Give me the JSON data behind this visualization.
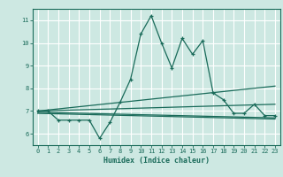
{
  "xlabel": "Humidex (Indice chaleur)",
  "xlim": [
    -0.5,
    23.5
  ],
  "ylim": [
    5.5,
    11.5
  ],
  "yticks": [
    6,
    7,
    8,
    9,
    10,
    11
  ],
  "xticks": [
    0,
    1,
    2,
    3,
    4,
    5,
    6,
    7,
    8,
    9,
    10,
    11,
    12,
    13,
    14,
    15,
    16,
    17,
    18,
    19,
    20,
    21,
    22,
    23
  ],
  "bg_color": "#cde8e2",
  "grid_color": "#ffffff",
  "line_color": "#1a6b5a",
  "series1_x": [
    0,
    1,
    2,
    3,
    4,
    5,
    6,
    7,
    8,
    9,
    10,
    11,
    12,
    13,
    14,
    15,
    16,
    17,
    18,
    19,
    20,
    21,
    22,
    23
  ],
  "series1_y": [
    7.0,
    7.0,
    6.6,
    6.6,
    6.6,
    6.6,
    5.8,
    6.5,
    7.4,
    8.4,
    10.4,
    11.2,
    10.0,
    8.9,
    10.2,
    9.5,
    10.1,
    7.8,
    7.5,
    6.9,
    6.9,
    7.3,
    6.8,
    6.8
  ],
  "series2_x": [
    0,
    23
  ],
  "series2_y": [
    7.0,
    8.1
  ],
  "series3_x": [
    0,
    23
  ],
  "series3_y": [
    7.0,
    7.3
  ],
  "series4_x": [
    0,
    23
  ],
  "series4_y": [
    6.95,
    6.7
  ],
  "series5_x": [
    0,
    23
  ],
  "series5_y": [
    6.9,
    6.65
  ]
}
